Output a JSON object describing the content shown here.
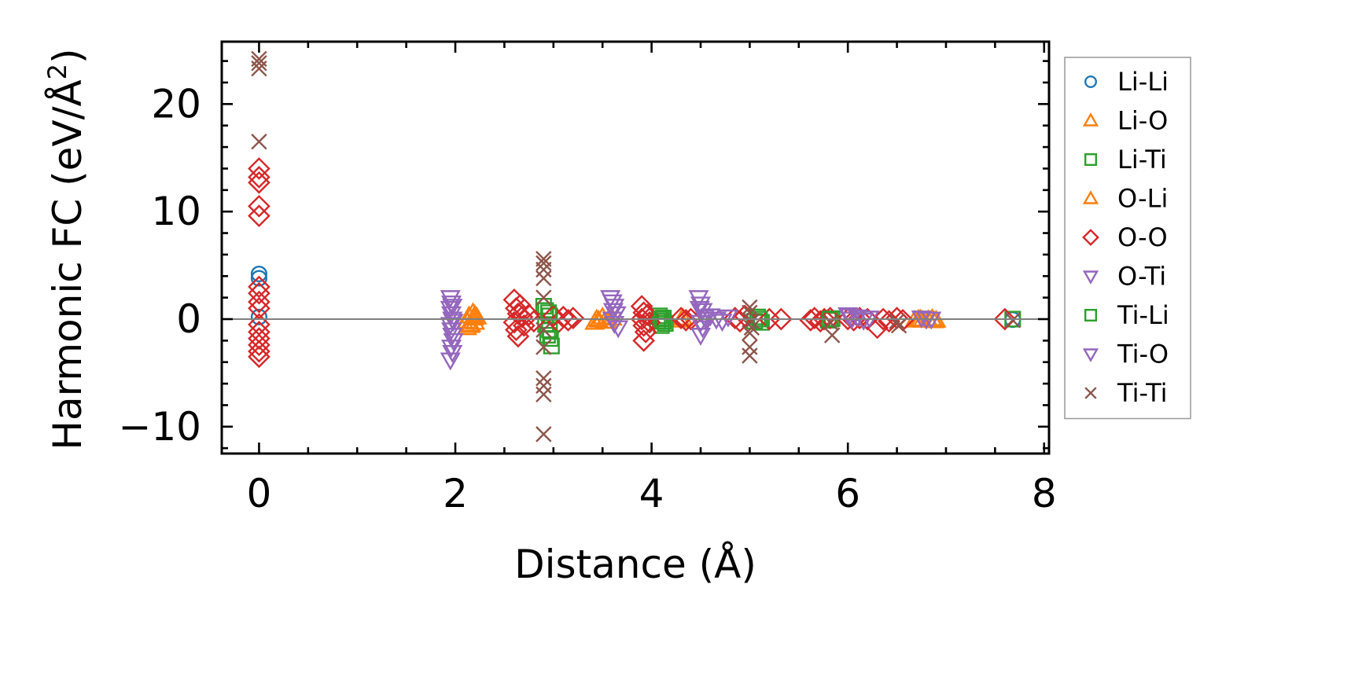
{
  "chart_data": {
    "type": "scatter",
    "xlabel": "Distance (Å)",
    "ylabel": "Harmonic FC (eV/Å",
    "ylabel_superscript": "2",
    "ylabel_close": ")",
    "xlim": [
      -0.38,
      8.05
    ],
    "ylim": [
      -12.5,
      25.8
    ],
    "x_ticks": [
      0,
      2,
      4,
      6,
      8
    ],
    "x_tick_labels": [
      "0",
      "2",
      "4",
      "6",
      "8"
    ],
    "y_ticks": [
      -10,
      0,
      10,
      20
    ],
    "y_tick_labels": [
      "−10",
      "0",
      "10",
      "20"
    ],
    "x_minor_step": 0.5,
    "y_minor_step": 2,
    "zero_line": true,
    "grid": false,
    "legend_position": "outside-right",
    "series": [
      {
        "name": "Li-Li",
        "marker": "circle",
        "color": "#1f77b4",
        "points": [
          [
            0,
            4.2
          ],
          [
            0,
            3.8
          ],
          [
            0,
            0.2
          ],
          [
            7.68,
            -0.05
          ]
        ]
      },
      {
        "name": "Li-O",
        "marker": "triangle-up",
        "color": "#ff7f0e",
        "points": [
          [
            2.12,
            -0.8
          ],
          [
            2.14,
            0.3
          ],
          [
            2.16,
            -0.5
          ],
          [
            2.18,
            0.6
          ],
          [
            2.2,
            -0.3
          ],
          [
            2.22,
            0.2
          ],
          [
            2.12,
            -0.2
          ],
          [
            2.2,
            0.4
          ],
          [
            3.42,
            -0.3
          ],
          [
            3.46,
            -0.1
          ],
          [
            3.5,
            0.2
          ],
          [
            3.55,
            -0.2
          ],
          [
            3.6,
            0.1
          ],
          [
            4.3,
            -0.1
          ],
          [
            4.32,
            0.1
          ],
          [
            6.68,
            -0.1
          ],
          [
            6.72,
            0.0
          ],
          [
            6.76,
            -0.1
          ],
          [
            6.82,
            -0.05
          ],
          [
            6.86,
            0.05
          ],
          [
            6.9,
            -0.1
          ]
        ]
      },
      {
        "name": "Li-Ti",
        "marker": "square",
        "color": "#2ca02c",
        "points": [
          [
            2.9,
            1.2
          ],
          [
            2.92,
            -0.5
          ],
          [
            2.94,
            -1.5
          ],
          [
            2.96,
            0.3
          ],
          [
            2.98,
            -2.5
          ],
          [
            2.92,
            0.8
          ],
          [
            2.96,
            -1.0
          ],
          [
            4.06,
            -0.2
          ],
          [
            4.08,
            0.3
          ],
          [
            4.1,
            -0.6
          ],
          [
            4.12,
            0.1
          ],
          [
            4.14,
            -0.4
          ],
          [
            5.05,
            -0.2
          ],
          [
            5.08,
            0.2
          ],
          [
            5.12,
            -0.3
          ],
          [
            5.8,
            -0.1
          ],
          [
            5.84,
            0.05
          ],
          [
            7.68,
            0.0
          ]
        ]
      },
      {
        "name": "O-Li",
        "marker": "triangle-up",
        "color": "#ff7f0e",
        "points": [
          [
            2.15,
            -0.6
          ],
          [
            2.19,
            0.1
          ],
          [
            3.44,
            0.0
          ],
          [
            3.52,
            -0.2
          ],
          [
            6.74,
            0.0
          ],
          [
            6.88,
            -0.15
          ]
        ]
      },
      {
        "name": "O-O",
        "marker": "diamond",
        "color": "#d62728",
        "points": [
          [
            0,
            14.0
          ],
          [
            0,
            13.2
          ],
          [
            0,
            12.7
          ],
          [
            0,
            10.5
          ],
          [
            0,
            9.6
          ],
          [
            0,
            3.0
          ],
          [
            0,
            2.4
          ],
          [
            0,
            1.6
          ],
          [
            0,
            1.0
          ],
          [
            0,
            -0.5
          ],
          [
            0,
            -1.2
          ],
          [
            0,
            -1.8
          ],
          [
            0,
            -2.4
          ],
          [
            0,
            -3.0
          ],
          [
            0,
            -3.5
          ],
          [
            2.6,
            1.8
          ],
          [
            2.62,
            1.0
          ],
          [
            2.64,
            0.5
          ],
          [
            2.6,
            -0.3
          ],
          [
            2.62,
            -1.0
          ],
          [
            2.64,
            -1.6
          ],
          [
            2.68,
            0.2
          ],
          [
            2.7,
            -0.6
          ],
          [
            2.75,
            0.4
          ],
          [
            2.8,
            -0.2
          ],
          [
            2.66,
            1.3
          ],
          [
            3.0,
            0.3
          ],
          [
            3.05,
            -0.3
          ],
          [
            3.1,
            0.2
          ],
          [
            3.15,
            -0.1
          ],
          [
            3.2,
            0.1
          ],
          [
            3.9,
            1.2
          ],
          [
            3.92,
            0.6
          ],
          [
            3.9,
            0.0
          ],
          [
            3.92,
            -0.6
          ],
          [
            3.94,
            -1.2
          ],
          [
            3.92,
            -2.0
          ],
          [
            3.96,
            0.4
          ],
          [
            3.98,
            -0.3
          ],
          [
            4.3,
            0.1
          ],
          [
            4.35,
            -0.1
          ],
          [
            4.4,
            0.0
          ],
          [
            4.85,
            0.1
          ],
          [
            4.9,
            -0.2
          ],
          [
            4.95,
            0.3
          ],
          [
            5.2,
            0.0
          ],
          [
            5.32,
            0.0
          ],
          [
            5.62,
            -0.1
          ],
          [
            5.66,
            0.1
          ],
          [
            5.72,
            -0.2
          ],
          [
            5.76,
            0.0
          ],
          [
            5.82,
            0.1
          ],
          [
            6.0,
            0.0
          ],
          [
            6.06,
            -0.1
          ],
          [
            6.12,
            0.1
          ],
          [
            6.2,
            0.0
          ],
          [
            6.3,
            -0.8
          ],
          [
            6.36,
            0.0
          ],
          [
            6.42,
            -0.2
          ],
          [
            6.5,
            0.1
          ],
          [
            6.56,
            -0.1
          ],
          [
            7.6,
            0.0
          ]
        ]
      },
      {
        "name": "O-Ti",
        "marker": "triangle-down",
        "color": "#9467bd",
        "points": [
          [
            1.95,
            2.0
          ],
          [
            1.96,
            1.5
          ],
          [
            1.95,
            1.0
          ],
          [
            1.96,
            0.5
          ],
          [
            1.97,
            0.0
          ],
          [
            1.95,
            -0.5
          ],
          [
            1.96,
            -1.0
          ],
          [
            1.97,
            -1.5
          ],
          [
            1.98,
            -2.0
          ],
          [
            1.96,
            -2.6
          ],
          [
            1.97,
            -3.1
          ],
          [
            1.95,
            -3.8
          ],
          [
            3.58,
            2.0
          ],
          [
            3.6,
            1.6
          ],
          [
            3.62,
            1.2
          ],
          [
            3.64,
            0.5
          ],
          [
            3.6,
            0.0
          ],
          [
            3.62,
            -0.4
          ],
          [
            3.66,
            -0.8
          ],
          [
            4.48,
            2.0
          ],
          [
            4.5,
            1.4
          ],
          [
            4.52,
            0.8
          ],
          [
            4.54,
            0.2
          ],
          [
            4.5,
            -0.3
          ],
          [
            4.52,
            -0.8
          ],
          [
            4.5,
            -1.5
          ],
          [
            4.6,
            0.3
          ],
          [
            4.66,
            0.0
          ],
          [
            4.72,
            -0.2
          ],
          [
            4.78,
            0.2
          ],
          [
            6.0,
            0.4
          ],
          [
            6.04,
            0.0
          ],
          [
            6.1,
            0.2
          ],
          [
            6.16,
            -0.1
          ],
          [
            6.22,
            0.1
          ],
          [
            6.75,
            0.1
          ],
          [
            6.85,
            0.0
          ]
        ]
      },
      {
        "name": "Ti-Li",
        "marker": "square",
        "color": "#2ca02c",
        "points": [
          [
            2.95,
            0.6
          ],
          [
            2.97,
            -1.8
          ],
          [
            4.1,
            0.0
          ],
          [
            4.12,
            -0.2
          ],
          [
            5.1,
            0.0
          ],
          [
            5.82,
            0.0
          ]
        ]
      },
      {
        "name": "Ti-O",
        "marker": "triangle-down",
        "color": "#9467bd",
        "points": [
          [
            1.97,
            1.2
          ],
          [
            1.98,
            -0.2
          ],
          [
            3.61,
            0.8
          ],
          [
            4.49,
            1.0
          ],
          [
            4.55,
            0.0
          ],
          [
            6.02,
            0.3
          ],
          [
            6.8,
            0.0
          ]
        ]
      },
      {
        "name": "Ti-Ti",
        "marker": "x",
        "color": "#8c564b",
        "points": [
          [
            0,
            24.2
          ],
          [
            0,
            23.8
          ],
          [
            0,
            23.3
          ],
          [
            0,
            16.5
          ],
          [
            2.9,
            5.6
          ],
          [
            2.9,
            5.2
          ],
          [
            2.9,
            4.6
          ],
          [
            2.9,
            3.8
          ],
          [
            2.9,
            2.0
          ],
          [
            2.9,
            -1.0
          ],
          [
            2.9,
            -2.6
          ],
          [
            2.9,
            -5.5
          ],
          [
            2.9,
            -6.2
          ],
          [
            2.9,
            -7.0
          ],
          [
            2.9,
            -10.7
          ],
          [
            5.0,
            1.1
          ],
          [
            5.0,
            0.6
          ],
          [
            5.02,
            -0.2
          ],
          [
            5.02,
            -0.8
          ],
          [
            5.0,
            -1.3
          ],
          [
            5.0,
            -2.6
          ],
          [
            5.0,
            -3.4
          ],
          [
            5.82,
            -0.3
          ],
          [
            5.84,
            -1.5
          ],
          [
            6.5,
            -0.2
          ],
          [
            6.52,
            -0.6
          ],
          [
            7.68,
            -0.1
          ]
        ]
      }
    ]
  }
}
